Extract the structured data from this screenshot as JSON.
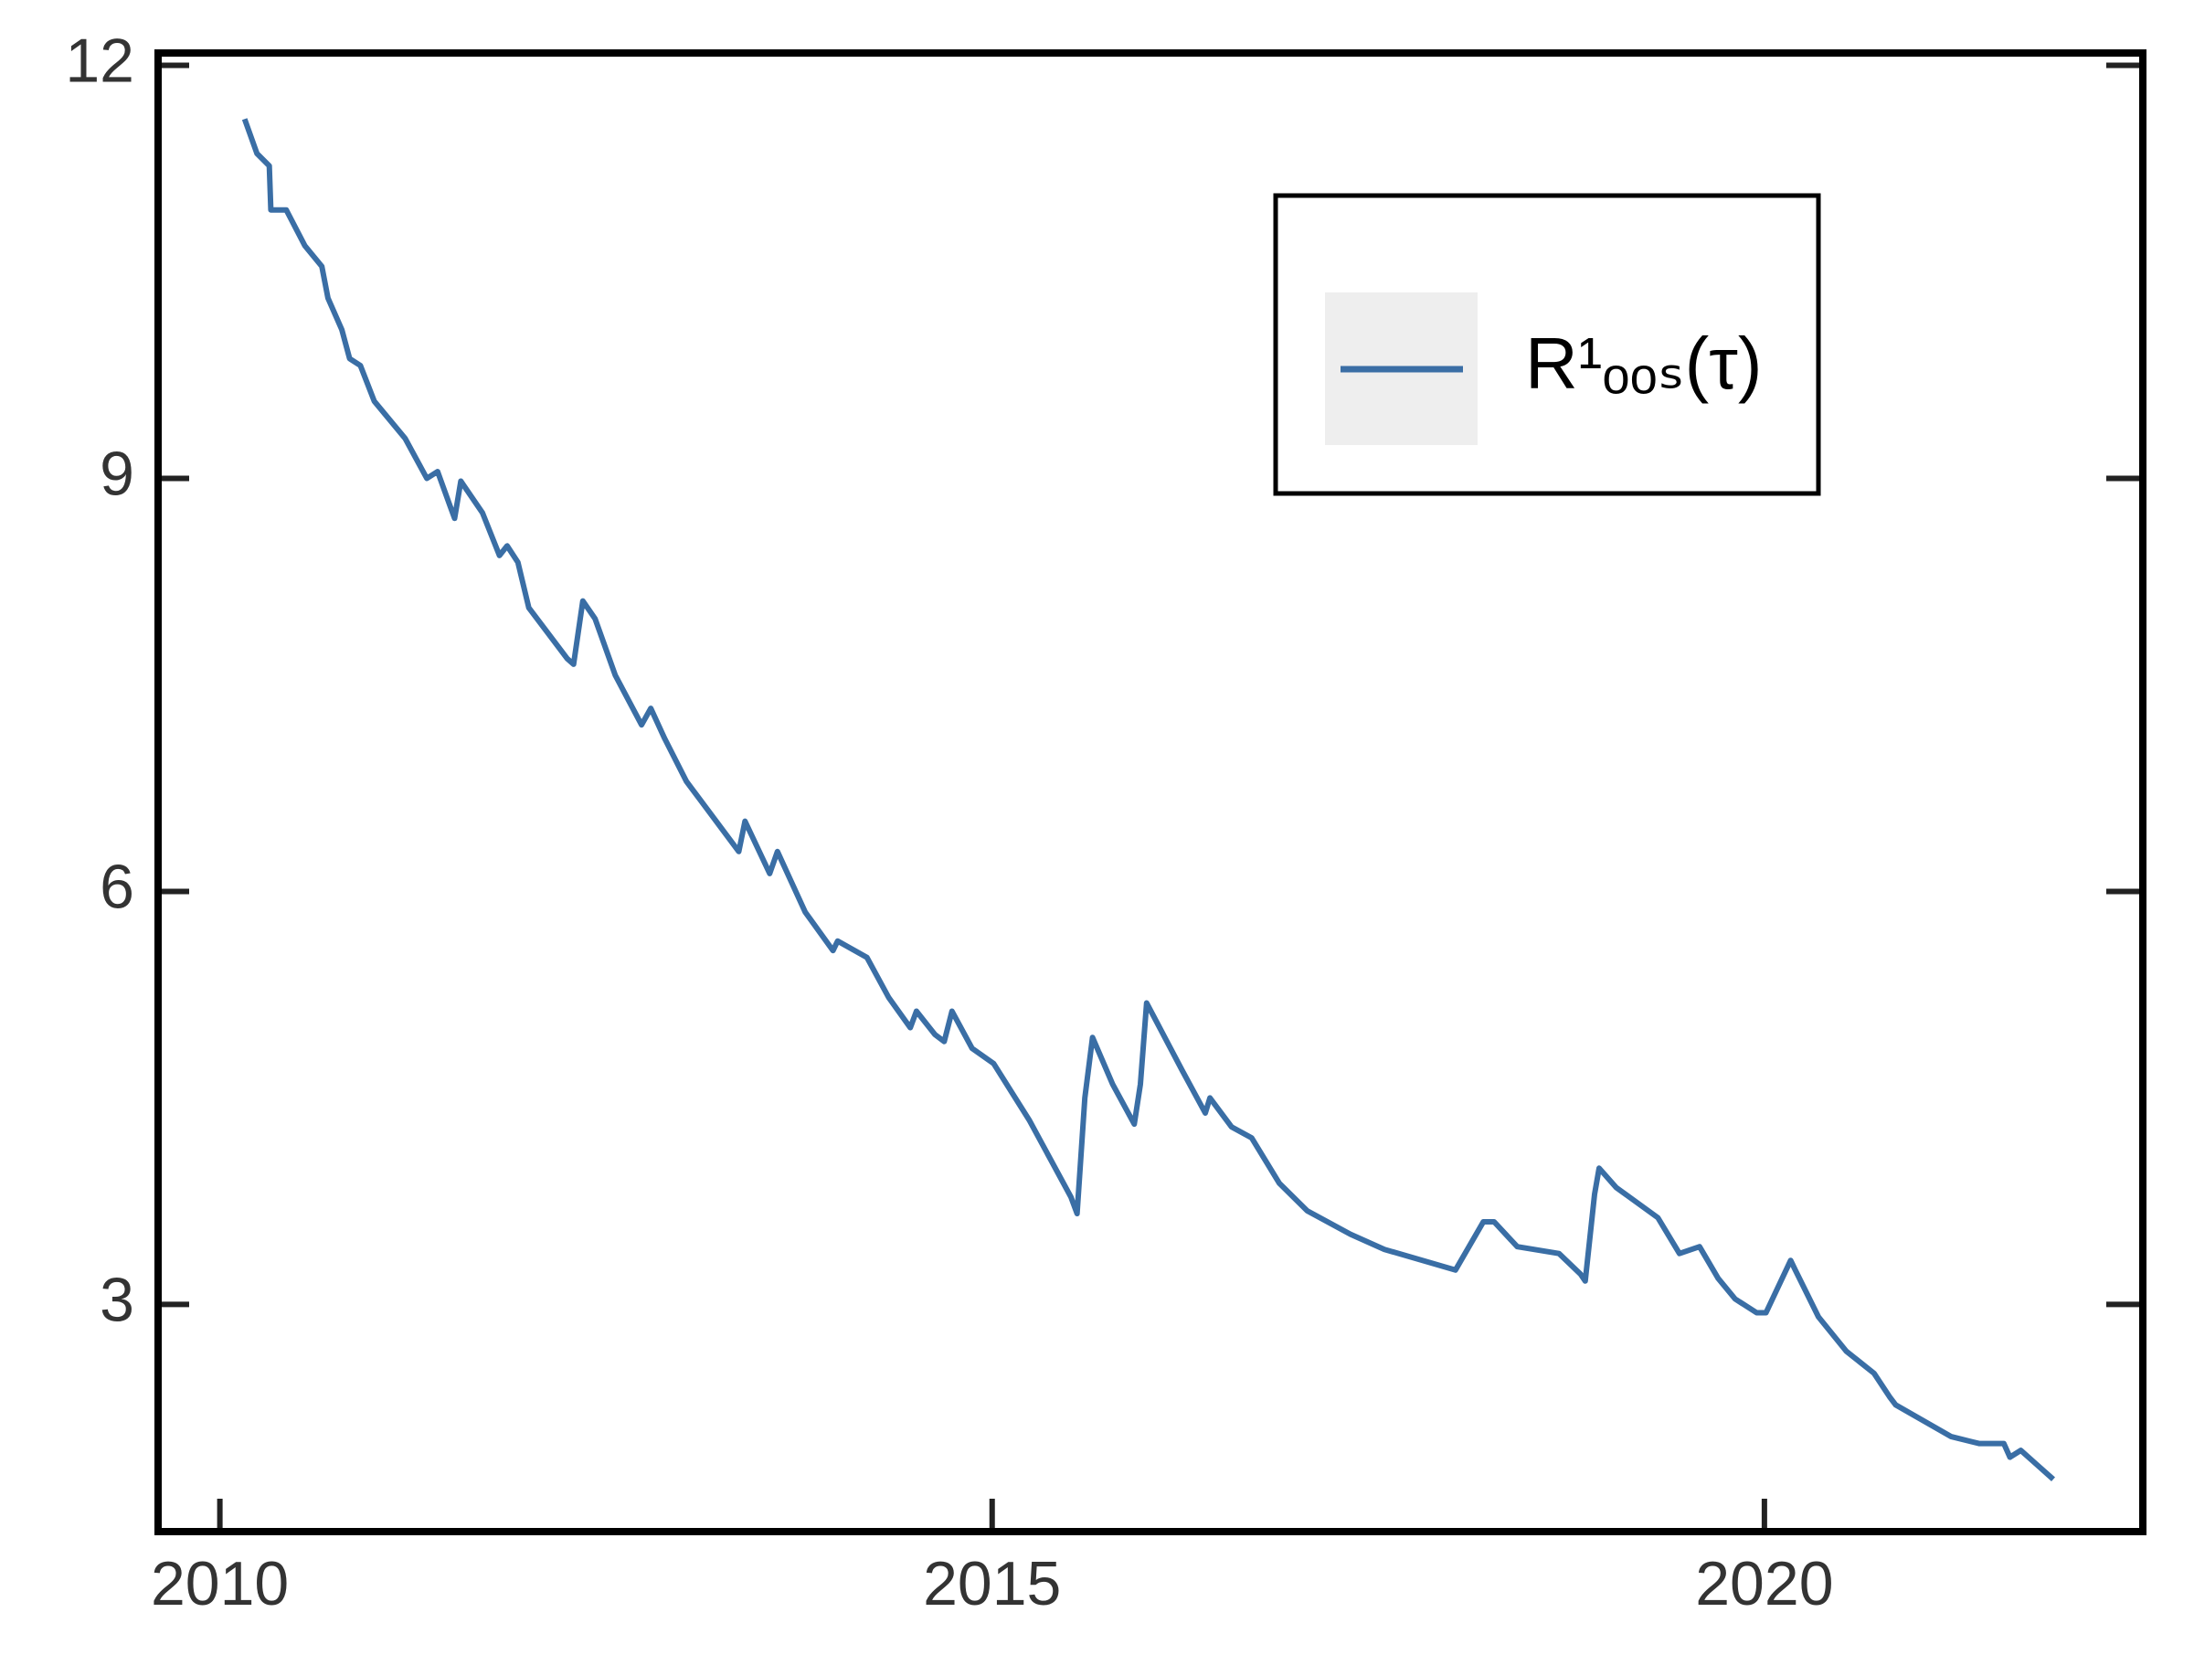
{
  "chart_data": {
    "type": "line",
    "x": [
      2010.16,
      2010.24,
      2010.32,
      2010.33,
      2010.43,
      2010.55,
      2010.66,
      2010.7,
      2010.79,
      2010.84,
      2010.91,
      2011.0,
      2011.2,
      2011.34,
      2011.41,
      2011.49,
      2011.52,
      2011.56,
      2011.7,
      2011.81,
      2011.86,
      2011.93,
      2012.0,
      2012.25,
      2012.29,
      2012.35,
      2012.43,
      2012.56,
      2012.73,
      2012.79,
      2012.88,
      2013.02,
      2013.36,
      2013.4,
      2013.56,
      2013.61,
      2013.79,
      2013.97,
      2014.0,
      2014.19,
      2014.33,
      2014.47,
      2014.51,
      2014.63,
      2014.69,
      2014.74,
      2014.87,
      2015.01,
      2015.24,
      2015.51,
      2015.55,
      2015.6,
      2015.65,
      2015.78,
      2015.92,
      2015.96,
      2016.0,
      2016.23,
      2016.38,
      2016.41,
      2016.55,
      2016.68,
      2016.86,
      2017.04,
      2017.32,
      2017.54,
      2018.0,
      2018.18,
      2018.25,
      2018.4,
      2018.67,
      2018.81,
      2018.84,
      2018.9,
      2018.93,
      2019.04,
      2019.31,
      2019.45,
      2019.58,
      2019.7,
      2019.81,
      2019.95,
      2020.01,
      2020.17,
      2020.2,
      2020.35,
      2020.53,
      2020.71,
      2020.81,
      2020.85,
      2021.21,
      2021.39,
      2021.55,
      2021.59,
      2021.66,
      2021.76,
      2021.87
    ],
    "series": [
      {
        "name": "R¹ₒₒₛ(τ)",
        "color": "#3a6ea5",
        "values": [
          11.61,
          11.36,
          11.27,
          10.95,
          10.95,
          10.69,
          10.54,
          10.31,
          10.08,
          9.87,
          9.82,
          9.56,
          9.29,
          9.0,
          9.05,
          8.8,
          8.71,
          8.98,
          8.75,
          8.44,
          8.51,
          8.39,
          8.06,
          7.69,
          7.65,
          8.11,
          7.98,
          7.57,
          7.21,
          7.33,
          7.11,
          6.8,
          6.29,
          6.51,
          6.13,
          6.29,
          5.85,
          5.57,
          5.64,
          5.52,
          5.23,
          5.01,
          5.13,
          4.96,
          4.91,
          5.13,
          4.86,
          4.75,
          4.34,
          3.78,
          3.66,
          4.5,
          4.94,
          4.6,
          4.31,
          4.6,
          5.19,
          4.7,
          4.39,
          4.5,
          4.29,
          4.21,
          3.88,
          3.68,
          3.51,
          3.4,
          3.25,
          3.6,
          3.6,
          3.42,
          3.37,
          3.22,
          3.17,
          3.8,
          3.99,
          3.85,
          3.63,
          3.37,
          3.42,
          3.19,
          3.04,
          2.94,
          2.94,
          3.32,
          3.25,
          2.91,
          2.66,
          2.5,
          2.33,
          2.27,
          2.04,
          1.99,
          1.99,
          1.89,
          1.94,
          1.84,
          1.73
        ]
      }
    ],
    "xlim": [
      2009.6,
      2022.45
    ],
    "xticks": [
      2010,
      2015,
      2020
    ],
    "ylim": [
      1.35,
      12.09
    ],
    "yticks": [
      3,
      6,
      9,
      12
    ],
    "legend": "upper right"
  }
}
